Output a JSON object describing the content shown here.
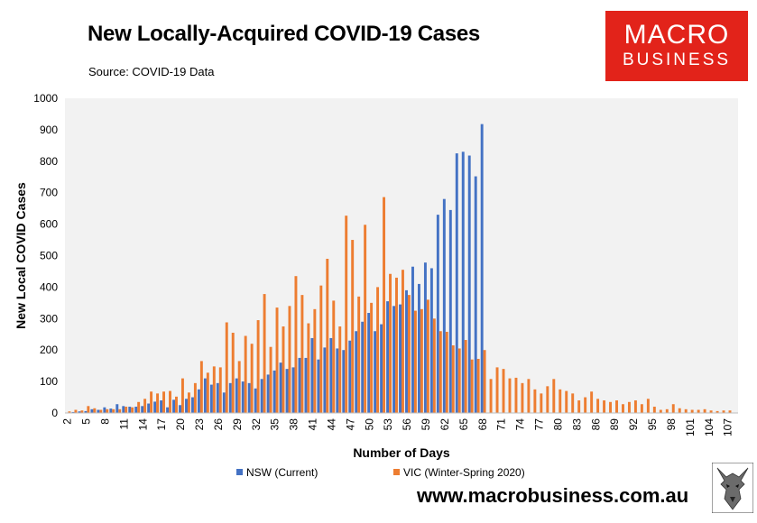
{
  "header": {
    "title": "New Locally-Acquired COVID-19 Cases",
    "source": "Source: COVID-19 Data"
  },
  "logo": {
    "line1": "MACRO",
    "line2": "BUSINESS"
  },
  "footer": {
    "website": "www.macrobusiness.com.au"
  },
  "colors": {
    "nsw": "#4472c4",
    "vic": "#ed7d31",
    "plot_background": "#f2f2f2"
  },
  "chart_data": {
    "type": "bar",
    "xlabel": "Number of Days",
    "ylabel": "New Local COVID Cases",
    "ylim": [
      0,
      1000
    ],
    "yticks": [
      0,
      100,
      200,
      300,
      400,
      500,
      600,
      700,
      800,
      900,
      1000
    ],
    "x_start": 2,
    "x_end": 108,
    "x_tick_labels": [
      2,
      5,
      8,
      11,
      14,
      17,
      20,
      23,
      26,
      29,
      32,
      35,
      38,
      41,
      44,
      47,
      50,
      53,
      56,
      59,
      62,
      65,
      68,
      71,
      74,
      77,
      80,
      83,
      86,
      89,
      92,
      95,
      98,
      101,
      104,
      107
    ],
    "legend_position": "bottom",
    "grid": false,
    "series": [
      {
        "name": "NSW (Current)",
        "color": "#4472c4",
        "values": [
          0,
          3,
          5,
          6,
          12,
          10,
          18,
          14,
          28,
          22,
          20,
          20,
          22,
          30,
          36,
          40,
          18,
          42,
          25,
          45,
          50,
          75,
          110,
          90,
          95,
          65,
          95,
          110,
          100,
          95,
          78,
          108,
          122,
          135,
          160,
          140,
          145,
          175,
          175,
          238,
          170,
          208,
          238,
          205,
          200,
          230,
          260,
          290,
          318,
          260,
          282,
          355,
          340,
          345,
          390,
          465,
          410,
          478,
          460,
          630,
          680,
          645,
          825,
          830,
          818,
          752,
          918
        ]
      },
      {
        "name": "VIC (Winter-Spring 2020)",
        "color": "#ed7d31",
        "values": [
          5,
          10,
          8,
          22,
          15,
          10,
          12,
          12,
          12,
          20,
          18,
          35,
          45,
          68,
          62,
          68,
          70,
          52,
          110,
          65,
          95,
          165,
          128,
          148,
          145,
          288,
          255,
          165,
          245,
          220,
          295,
          378,
          210,
          335,
          275,
          340,
          435,
          375,
          285,
          330,
          405,
          490,
          357,
          275,
          627,
          550,
          370,
          598,
          350,
          400,
          686,
          442,
          430,
          455,
          375,
          325,
          330,
          360,
          300,
          260,
          258,
          215,
          205,
          232,
          170,
          172,
          200,
          108,
          145,
          140,
          110,
          112,
          95,
          108,
          75,
          62,
          85,
          108,
          75,
          70,
          62,
          40,
          50,
          68,
          45,
          40,
          35,
          40,
          28,
          35,
          40,
          28,
          45,
          20,
          10,
          12,
          28,
          15,
          12,
          10,
          10,
          12,
          8,
          6,
          8,
          8
        ]
      }
    ]
  }
}
